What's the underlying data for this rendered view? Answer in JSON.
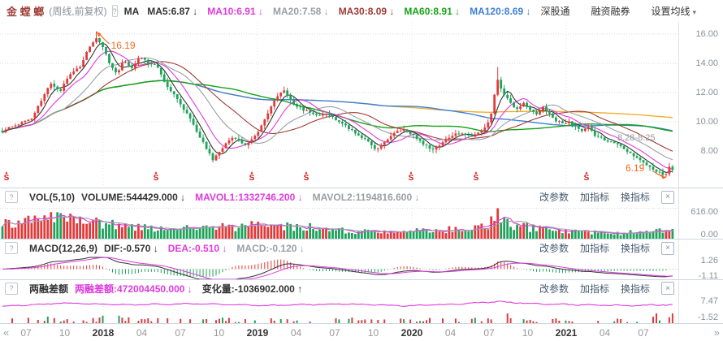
{
  "header": {
    "stock_name": "金 螳 螂",
    "mode": "(周线,前复权)",
    "help": "?",
    "ma_label": "MA",
    "ma_items": [
      {
        "text": "MA5:6.87",
        "arrow": "↓",
        "color": "#333333"
      },
      {
        "text": "MA10:6.91",
        "arrow": "↓",
        "color": "#df3adf"
      },
      {
        "text": "MA20:7.58",
        "arrow": "↓",
        "color": "#9aa0a6"
      },
      {
        "text": "MA30:8.09",
        "arrow": "↓",
        "color": "#a03a35"
      },
      {
        "text": "MA60:8.91",
        "arrow": "↓",
        "color": "#17a317"
      },
      {
        "text": "MA120:8.69",
        "arrow": "↓",
        "color": "#3d7fd9"
      }
    ],
    "links": [
      "深股通",
      "融资融券"
    ],
    "settings_label": "设置均线",
    "settings_caret": "▾"
  },
  "pane_buttons": {
    "edit": "改参数",
    "add": "加指标",
    "switch": "换指标",
    "close": "×"
  },
  "price_pane": {
    "help": "?",
    "annotations": {
      "peak": "16.19",
      "gap": "8.28-8.25",
      "low": "6.19"
    },
    "y_tick_labels": [
      "16.00",
      "14.00",
      "12.00",
      "10.00",
      "8.00"
    ],
    "s_marker": {
      "glyph": "S",
      "arrow": "▲",
      "positions": [
        8,
        192,
        310,
        377,
        506,
        586,
        722
      ]
    }
  },
  "vol_pane": {
    "help": "?",
    "name": "VOL(5,10)",
    "items": [
      {
        "text": "VOLUME:544429.000",
        "arrow": "↓",
        "color": "#333333"
      },
      {
        "text": "MAVOL1:1332746.200",
        "arrow": "↓",
        "color": "#df3adf"
      },
      {
        "text": "MAVOL2:1194816.600",
        "arrow": "↓",
        "color": "#9aa0a6"
      }
    ],
    "y_tick_labels": [
      "616.00",
      "0.00"
    ]
  },
  "macd_pane": {
    "help": "?",
    "name": "MACD(12,26,9)",
    "items": [
      {
        "text": "DIF:-0.570",
        "arrow": "↓",
        "color": "#333333"
      },
      {
        "text": "DEA:-0.510",
        "arrow": "↓",
        "color": "#df3adf"
      },
      {
        "text": "MACD:-0.120",
        "arrow": "↓",
        "color": "#9aa0a6"
      }
    ],
    "y_tick_labels": [
      "1.26",
      "-1.11"
    ]
  },
  "margin_pane": {
    "help": "?",
    "name": "两融差额",
    "items": [
      {
        "text": "两融差额:472004450.000",
        "arrow": "↓",
        "color": "#df3adf"
      },
      {
        "text": "变化量:-1036902.000",
        "arrow": "↑",
        "color": "#333333"
      }
    ],
    "y_tick_labels": [
      "7.47",
      "-1.52"
    ]
  },
  "time_axis": {
    "prev": "«",
    "next": "»",
    "labels": [
      {
        "text": "07"
      },
      {
        "text": "10"
      },
      {
        "text": "2018",
        "year": true
      },
      {
        "text": "04"
      },
      {
        "text": "07"
      },
      {
        "text": "10"
      },
      {
        "text": "2019",
        "year": true
      },
      {
        "text": "04"
      },
      {
        "text": "07"
      },
      {
        "text": "10"
      },
      {
        "text": "2020",
        "year": true
      },
      {
        "text": "04"
      },
      {
        "text": "07"
      },
      {
        "text": "10"
      },
      {
        "text": "2021",
        "year": true
      },
      {
        "text": "04"
      },
      {
        "text": "07"
      }
    ]
  },
  "colors": {
    "up_candle": "#e23a3a",
    "down_candle": "#1da35a",
    "ma5": "#333333",
    "ma10": "#df3adf",
    "ma20": "#9aa0a6",
    "ma30": "#a03a35",
    "ma60": "#17a317",
    "ma120": "#3d7fd9",
    "ma250": "#f0ad2e",
    "annotation_orange": "#f96a1c",
    "gap_gray": "#999999",
    "dif_line": "#333333",
    "dea_line": "#df3adf",
    "margin_line": "#df3adf",
    "s_marker": "#d51919",
    "separator": "#ccd6e3",
    "grid": "#d9d9d9",
    "axis_text": "#8a8f99"
  },
  "chart_data": {
    "type": "candlestick",
    "timeframe": "weekly, forward-adjusted",
    "title": "金螳螂 周线 前复权",
    "x_axis_labels": [
      "07",
      "10",
      "2018",
      "04",
      "07",
      "10",
      "2019",
      "04",
      "07",
      "10",
      "2020",
      "04",
      "07",
      "10",
      "2021",
      "04",
      "07"
    ],
    "price": {
      "ylim": [
        6.0,
        16.8
      ],
      "y_ticks": [
        16,
        14,
        12,
        10,
        8
      ],
      "peak_high": 16.19,
      "final_low": 6.19,
      "spike_high": 13.75,
      "spike_x": 612,
      "ma_values": {
        "MA5": 6.87,
        "MA10": 6.91,
        "MA20": 7.58,
        "MA30": 8.09,
        "MA60": 8.91,
        "MA120": 8.69
      },
      "anchors": [
        [
          3,
          9.3
        ],
        [
          14,
          9.7
        ],
        [
          26,
          9.9
        ],
        [
          38,
          10.2
        ],
        [
          50,
          11.4
        ],
        [
          62,
          12.7
        ],
        [
          74,
          12.1
        ],
        [
          86,
          13.3
        ],
        [
          98,
          13.7
        ],
        [
          108,
          14.9
        ],
        [
          118,
          15.7
        ],
        [
          126,
          15.2
        ],
        [
          134,
          14.1
        ],
        [
          144,
          13.3
        ],
        [
          152,
          14.3
        ],
        [
          162,
          13.7
        ],
        [
          172,
          14.5
        ],
        [
          182,
          14.0
        ],
        [
          192,
          13.9
        ],
        [
          204,
          12.6
        ],
        [
          216,
          11.7
        ],
        [
          228,
          10.7
        ],
        [
          240,
          9.6
        ],
        [
          252,
          8.4
        ],
        [
          262,
          7.4
        ],
        [
          272,
          8.0
        ],
        [
          282,
          8.8
        ],
        [
          292,
          8.9
        ],
        [
          302,
          8.4
        ],
        [
          312,
          8.9
        ],
        [
          322,
          9.7
        ],
        [
          332,
          10.9
        ],
        [
          342,
          11.8
        ],
        [
          350,
          12.2
        ],
        [
          358,
          11.4
        ],
        [
          368,
          11.0
        ],
        [
          378,
          10.7
        ],
        [
          390,
          10.4
        ],
        [
          402,
          10.6
        ],
        [
          414,
          10.1
        ],
        [
          426,
          9.7
        ],
        [
          438,
          9.2
        ],
        [
          450,
          8.8
        ],
        [
          462,
          8.1
        ],
        [
          474,
          8.6
        ],
        [
          486,
          9.3
        ],
        [
          498,
          9.5
        ],
        [
          510,
          9.0
        ],
        [
          522,
          8.4
        ],
        [
          534,
          8.1
        ],
        [
          546,
          8.7
        ],
        [
          558,
          9.1
        ],
        [
          570,
          9.2
        ],
        [
          582,
          8.9
        ],
        [
          594,
          9.4
        ],
        [
          604,
          10.3
        ],
        [
          612,
          12.9
        ],
        [
          620,
          11.9
        ],
        [
          628,
          11.3
        ],
        [
          636,
          10.9
        ],
        [
          644,
          11.3
        ],
        [
          652,
          10.8
        ],
        [
          660,
          10.5
        ],
        [
          668,
          11.0
        ],
        [
          676,
          10.6
        ],
        [
          684,
          10.1
        ],
        [
          692,
          9.9
        ],
        [
          700,
          10.0
        ],
        [
          708,
          9.7
        ],
        [
          716,
          9.4
        ],
        [
          724,
          9.6
        ],
        [
          732,
          9.1
        ],
        [
          740,
          8.9
        ],
        [
          748,
          8.7
        ],
        [
          756,
          8.5
        ],
        [
          764,
          8.3
        ],
        [
          772,
          8.0
        ],
        [
          780,
          7.7
        ],
        [
          788,
          7.4
        ],
        [
          796,
          7.1
        ],
        [
          804,
          6.8
        ],
        [
          812,
          6.5
        ],
        [
          818,
          6.3
        ],
        [
          824,
          6.9
        ],
        [
          831,
          6.7
        ]
      ]
    },
    "volume": {
      "latest": 544429.0,
      "mavol1": 1332746.2,
      "mavol2": 1194816.6,
      "ylim": [
        0,
        616
      ],
      "y_ticks": [
        616,
        0
      ],
      "anchors": [
        [
          3,
          300
        ],
        [
          60,
          430
        ],
        [
          100,
          390
        ],
        [
          130,
          310
        ],
        [
          200,
          190
        ],
        [
          262,
          240
        ],
        [
          342,
          330
        ],
        [
          360,
          280
        ],
        [
          420,
          180
        ],
        [
          462,
          150
        ],
        [
          522,
          170
        ],
        [
          600,
          250
        ],
        [
          612,
          616
        ],
        [
          624,
          320
        ],
        [
          660,
          210
        ],
        [
          700,
          150
        ],
        [
          760,
          115
        ],
        [
          800,
          160
        ],
        [
          831,
          180
        ]
      ]
    },
    "macd": {
      "params": [
        12,
        26,
        9
      ],
      "dif": -0.57,
      "dea": -0.51,
      "macd": -0.12,
      "ylim": [
        -1.11,
        1.26
      ],
      "y_ticks": [
        1.26,
        -1.11
      ]
    },
    "margin_balance": {
      "latest": 472004450.0,
      "change": -1036902.0,
      "ylim": [
        -1.52,
        7.47
      ],
      "y_ticks": [
        7.47,
        -1.52
      ],
      "anchors": [
        [
          3,
          4.2
        ],
        [
          80,
          5.2
        ],
        [
          160,
          4.6
        ],
        [
          240,
          5.0
        ],
        [
          330,
          4.4
        ],
        [
          420,
          4.9
        ],
        [
          500,
          4.3
        ],
        [
          560,
          4.8
        ],
        [
          612,
          5.7
        ],
        [
          660,
          5.0
        ],
        [
          720,
          4.6
        ],
        [
          780,
          4.4
        ],
        [
          831,
          4.7
        ]
      ]
    }
  }
}
